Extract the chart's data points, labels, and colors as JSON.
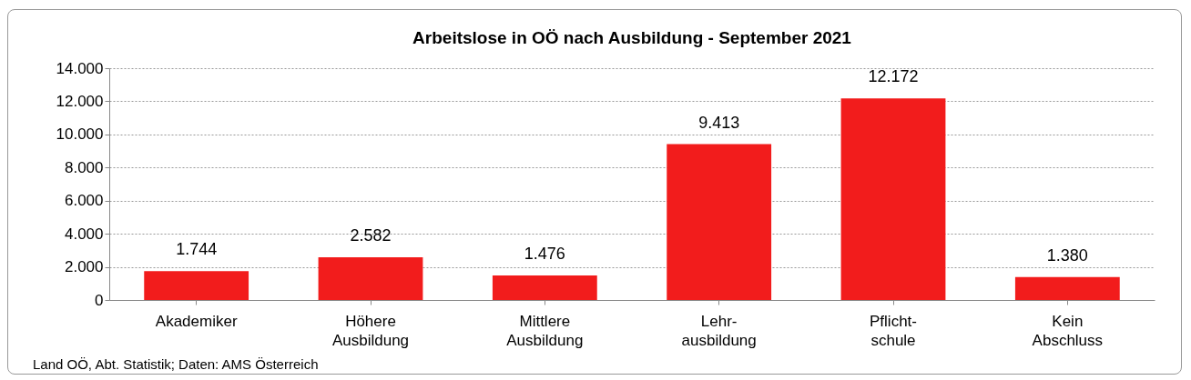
{
  "chart_data": {
    "type": "bar",
    "title": "Arbeitslose in OÖ nach Ausbildung - September 2021",
    "categories": [
      "Akademiker",
      "Höhere\nAusbildung",
      "Mittlere\nAusbildung",
      "Lehr-\nausbildung",
      "Pflicht-\nschule",
      "Kein\nAbschluss"
    ],
    "values": [
      1744,
      2582,
      1476,
      9413,
      12172,
      1380
    ],
    "value_labels": [
      "1.744",
      "2.582",
      "1.476",
      "9.413",
      "12.172",
      "1.380"
    ],
    "color": "#f21c1c",
    "ylim": [
      0,
      14000
    ],
    "yticks": [
      {
        "value": 0,
        "label": "0"
      },
      {
        "value": 2000,
        "label": "2.000"
      },
      {
        "value": 4000,
        "label": "4.000"
      },
      {
        "value": 6000,
        "label": "6.000"
      },
      {
        "value": 8000,
        "label": "8.000"
      },
      {
        "value": 10000,
        "label": "10.000"
      },
      {
        "value": 12000,
        "label": "12.000"
      },
      {
        "value": 14000,
        "label": "14.000"
      }
    ],
    "grid": "y",
    "annotations": [
      "Land OÖ, Abt. Statistik; Daten: AMS Österreich"
    ]
  }
}
